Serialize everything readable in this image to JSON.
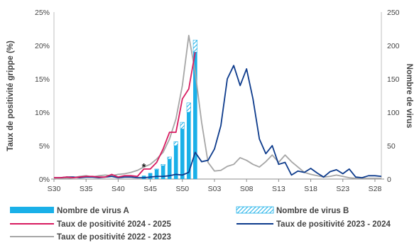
{
  "chart_data": {
    "type": "bar",
    "x_tick_labels": [
      "S30",
      "S35",
      "S40",
      "S45",
      "S50",
      "S03",
      "S08",
      "S13",
      "S18",
      "S23",
      "S28"
    ],
    "weeks": [
      "S30",
      "S31",
      "S32",
      "S33",
      "S34",
      "S35",
      "S36",
      "S37",
      "S38",
      "S39",
      "S40",
      "S41",
      "S42",
      "S43",
      "S44",
      "S45",
      "S46",
      "S47",
      "S48",
      "S49",
      "S50",
      "S51",
      "S52",
      "S01",
      "S02",
      "S03",
      "S04",
      "S05",
      "S06",
      "S07",
      "S08",
      "S09",
      "S10",
      "S11",
      "S12",
      "S13",
      "S14",
      "S15",
      "S16",
      "S17",
      "S18",
      "S19",
      "S20",
      "S21",
      "S22",
      "S23",
      "S24",
      "S25",
      "S26",
      "S27",
      "S28",
      "S29"
    ],
    "y_left": {
      "label": "Taux de positivité grippe (%)",
      "min": 0,
      "max": 25,
      "ticks": [
        "0%",
        "5%",
        "10%",
        "15%",
        "20%",
        "25%"
      ]
    },
    "y_right": {
      "label": "Nombre de virus",
      "min": 0,
      "max": 250,
      "ticks": [
        "0",
        "50",
        "100",
        "150",
        "200",
        "250"
      ]
    },
    "annotation": {
      "text": "*",
      "week": "S44"
    },
    "series": [
      {
        "name": "Nombre de virus A",
        "kind": "bar",
        "axis": "right",
        "color": "#1ab0e8",
        "values": [
          0,
          0,
          0,
          0,
          0,
          0,
          0,
          0,
          0,
          0,
          0,
          0,
          0,
          0,
          5,
          9,
          14,
          20,
          30,
          50,
          75,
          100,
          190,
          null,
          null,
          null,
          null,
          null,
          null,
          null,
          null,
          null,
          null,
          null,
          null,
          null,
          null,
          null,
          null,
          null,
          null,
          null,
          null,
          null,
          null,
          null,
          null,
          null,
          null,
          null,
          null,
          null
        ]
      },
      {
        "name": "Nombre de virus B",
        "kind": "bar-stacked-hatched",
        "axis": "right",
        "color": "#1ab0e8",
        "values": [
          0,
          0,
          0,
          0,
          0,
          0,
          0,
          0,
          0,
          0,
          0,
          0,
          0,
          0,
          0,
          0,
          1,
          2,
          3,
          6,
          10,
          14,
          18,
          null,
          null,
          null,
          null,
          null,
          null,
          null,
          null,
          null,
          null,
          null,
          null,
          null,
          null,
          null,
          null,
          null,
          null,
          null,
          null,
          null,
          null,
          null,
          null,
          null,
          null,
          null,
          null,
          null
        ]
      },
      {
        "name": "Taux de positivité 2024 - 2025",
        "kind": "line",
        "axis": "left",
        "color": "#d81b60",
        "values": [
          0.2,
          0.2,
          0.3,
          0.2,
          0.3,
          0.4,
          0.4,
          0.3,
          0.3,
          0.7,
          0.3,
          0.5,
          0.5,
          0.4,
          1.5,
          1.5,
          2.5,
          4.5,
          7,
          7,
          12,
          13.5,
          19,
          null,
          null,
          null,
          null,
          null,
          null,
          null,
          null,
          null,
          null,
          null,
          null,
          null,
          null,
          null,
          null,
          null,
          null,
          null,
          null,
          null,
          null,
          null,
          null,
          null,
          null,
          null,
          null,
          null
        ]
      },
      {
        "name": "Taux de positivité 2023 - 2024",
        "kind": "line",
        "axis": "left",
        "color": "#0d3b8c",
        "values": [
          0.2,
          0.2,
          0.3,
          0.3,
          0.2,
          0.3,
          0.3,
          0.2,
          0.3,
          0.4,
          0.2,
          0.3,
          0.3,
          0.2,
          0.2,
          0.3,
          0.4,
          0.4,
          0.5,
          0.7,
          0.6,
          1.0,
          4.0,
          2.6,
          2.8,
          4.5,
          8,
          15,
          17,
          14,
          16.5,
          12,
          6,
          3.8,
          5,
          2.2,
          2.5,
          0.6,
          1.2,
          1.0,
          1.6,
          0.9,
          0.3,
          1.1,
          1.4,
          0.8,
          1.5,
          0.3,
          0.2,
          0.5,
          0.5,
          0.4
        ]
      },
      {
        "name": "Taux de positivité 2022 - 2023",
        "kind": "line",
        "axis": "left",
        "color": "#a6a6a6",
        "values": [
          0,
          0.1,
          0.1,
          0.2,
          0.4,
          0.5,
          0.3,
          0.5,
          0.6,
          0.5,
          0.7,
          0.8,
          1.0,
          1.3,
          1.8,
          2.2,
          3,
          4,
          6,
          9,
          14,
          21.5,
          16,
          8.5,
          2.5,
          1.2,
          1.3,
          1.9,
          2.2,
          3.2,
          2.8,
          2.2,
          1.8,
          2.6,
          3.6,
          2.5,
          3.6,
          2.6,
          1.8,
          1.0,
          0.7,
          0.5,
          0.3,
          0.4,
          0.6,
          0.4,
          0.2,
          0.1,
          0.1,
          0.1,
          0.1,
          0.1
        ]
      }
    ],
    "legend": {
      "position": "bottom",
      "items": [
        {
          "label": "Nombre de virus A",
          "swatch": "solid-bar"
        },
        {
          "label": "Nombre de virus B",
          "swatch": "hatched-bar"
        },
        {
          "label": "Taux de positivité 2024 - 2025",
          "swatch": "line"
        },
        {
          "label": "Taux de positivité 2023 - 2024",
          "swatch": "line"
        },
        {
          "label": "Taux de positivité 2022 - 2023",
          "swatch": "line"
        }
      ]
    }
  }
}
